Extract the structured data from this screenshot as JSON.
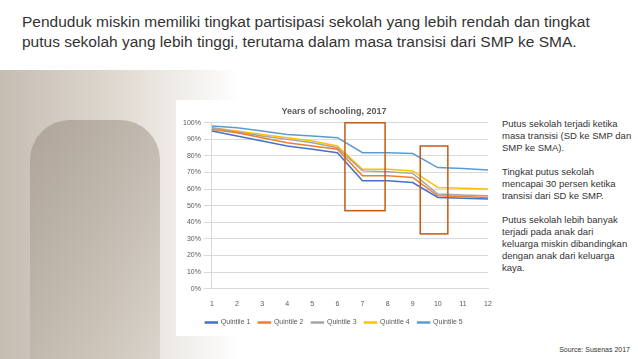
{
  "header": {
    "title": "Penduduk miskin memiliki tingkat partisipasi sekolah yang lebih rendah dan tingkat putus sekolah yang lebih tinggi, terutama dalam masa transisi dari SMP ke SMA."
  },
  "chart_data": {
    "type": "line",
    "title": "Years of schooling, 2017",
    "categories": [
      "1",
      "2",
      "3",
      "4",
      "5",
      "6",
      "7",
      "8",
      "9",
      "10",
      "11",
      "12"
    ],
    "series": [
      {
        "name": "Quintile 1",
        "color": "#4472c4",
        "values": [
          95,
          92,
          89,
          86,
          84,
          82,
          65,
          65,
          64,
          55,
          54.5,
          54
        ]
      },
      {
        "name": "Quintile 2",
        "color": "#ed7d31",
        "values": [
          96,
          94,
          91,
          88,
          86,
          84,
          68,
          68,
          67,
          56,
          55.5,
          55
        ]
      },
      {
        "name": "Quintile 3",
        "color": "#a5a5a5",
        "values": [
          97,
          94.5,
          92,
          90,
          88,
          85,
          71,
          70.5,
          69.5,
          57,
          56.5,
          56
        ]
      },
      {
        "name": "Quintile 4",
        "color": "#ffc000",
        "values": [
          97,
          95,
          93,
          91,
          89,
          86,
          72,
          72,
          71,
          61,
          60.5,
          60
        ]
      },
      {
        "name": "Quintile 5",
        "color": "#5b9bd5",
        "values": [
          98,
          97,
          95,
          93,
          92,
          91,
          82,
          82,
          81.5,
          73,
          72.5,
          71.5
        ]
      }
    ],
    "ylim": [
      0,
      100
    ],
    "yticks": [
      {
        "value": 0,
        "label": "0%"
      },
      {
        "value": 10,
        "label": "10%"
      },
      {
        "value": 20,
        "label": "20%"
      },
      {
        "value": 30,
        "label": "30%"
      },
      {
        "value": 40,
        "label": "40%"
      },
      {
        "value": 50,
        "label": "50%"
      },
      {
        "value": 60,
        "label": "60%"
      },
      {
        "value": 70,
        "label": "70%"
      },
      {
        "value": 80,
        "label": "80%"
      },
      {
        "value": 90,
        "label": "90%"
      },
      {
        "value": 100,
        "label": "100%"
      }
    ],
    "grid": true,
    "legend": "bottom"
  },
  "side_text": [
    "Putus sekolah terjadi ketika masa transisi (SD ke SMP dan SMP ke SMA).",
    "Tingkat putus sekolah mencapai 30 persen ketika transisi dari SD ke SMP.",
    "Putus sekolah lebih banyak terjadi pada anak dari keluarga miskin dibandingkan dengan anak dari keluarga kaya."
  ],
  "source": "Source: Susenas 2017"
}
